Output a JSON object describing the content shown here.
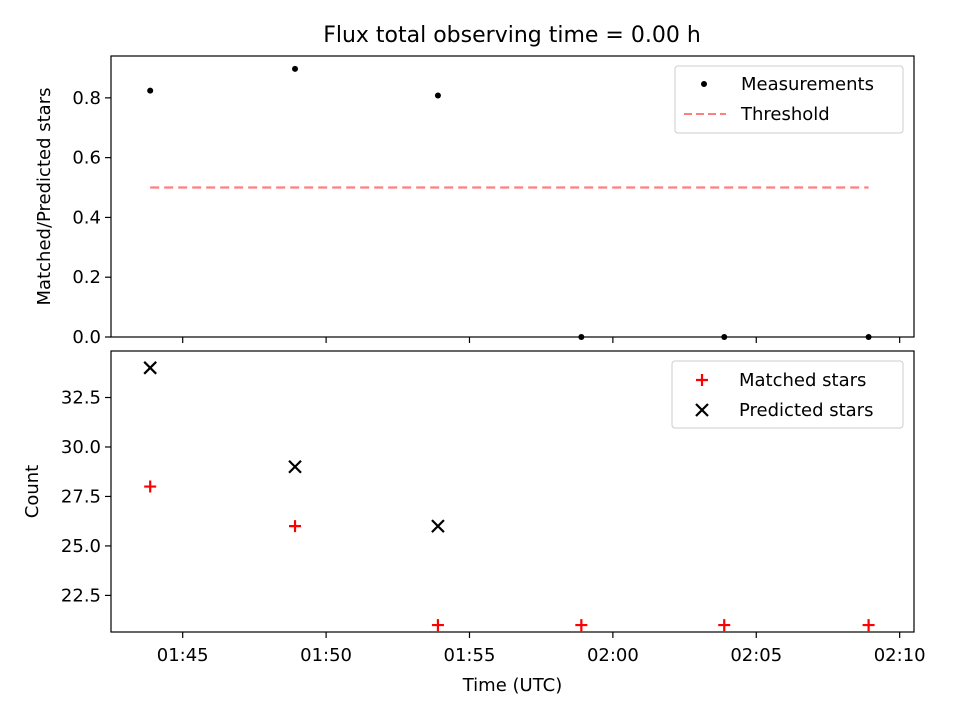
{
  "title": "Flux total observing time = 0.00 h",
  "chart_data": [
    {
      "type": "scatter",
      "ylabel": "Matched/Predicted stars",
      "xlabel": "",
      "xlim": [
        "01:42:30",
        "02:10:30"
      ],
      "ylim": [
        0,
        0.94
      ],
      "yticks": [
        0.0,
        0.2,
        0.4,
        0.6,
        0.8
      ],
      "ytick_labels": [
        "0.0",
        "0.2",
        "0.4",
        "0.6",
        "0.8"
      ],
      "x": [
        "01:43:52",
        "01:48:55",
        "01:53:54",
        "01:58:54",
        "02:03:53",
        "02:08:55"
      ],
      "series": [
        {
          "name": "Measurements",
          "kind": "dot",
          "color": "#000000",
          "values": [
            0.824,
            0.897,
            0.808,
            0.0,
            0.0,
            0.0
          ]
        },
        {
          "name": "Threshold",
          "kind": "dashed-line",
          "color": "#ff7f7f",
          "x": [
            "01:43:52",
            "02:08:55"
          ],
          "values": [
            0.5,
            0.5
          ]
        }
      ],
      "legend": {
        "placement": "top-right"
      },
      "grid": false
    },
    {
      "type": "scatter",
      "ylabel": "Count",
      "xlabel": "Time (UTC)",
      "xlim": [
        "01:42:30",
        "02:10:30"
      ],
      "ylim": [
        20.65,
        34.85
      ],
      "yticks": [
        22.5,
        25.0,
        27.5,
        30.0,
        32.5
      ],
      "ytick_labels": [
        "22.5",
        "25.0",
        "27.5",
        "30.0",
        "32.5"
      ],
      "xticks": [
        "01:45",
        "01:50",
        "01:55",
        "02:00",
        "02:05",
        "02:10"
      ],
      "x": [
        "01:43:52",
        "01:48:55",
        "01:53:54",
        "01:58:54",
        "02:03:53",
        "02:08:55"
      ],
      "series": [
        {
          "name": "Matched stars",
          "kind": "plus",
          "color": "#ff0000",
          "values": [
            28,
            26,
            21,
            21,
            21,
            21
          ]
        },
        {
          "name": "Predicted stars",
          "kind": "x",
          "color": "#000000",
          "values": [
            34,
            29,
            26,
            null,
            null,
            null
          ]
        }
      ],
      "legend": {
        "placement": "top-right"
      },
      "grid": false
    }
  ]
}
